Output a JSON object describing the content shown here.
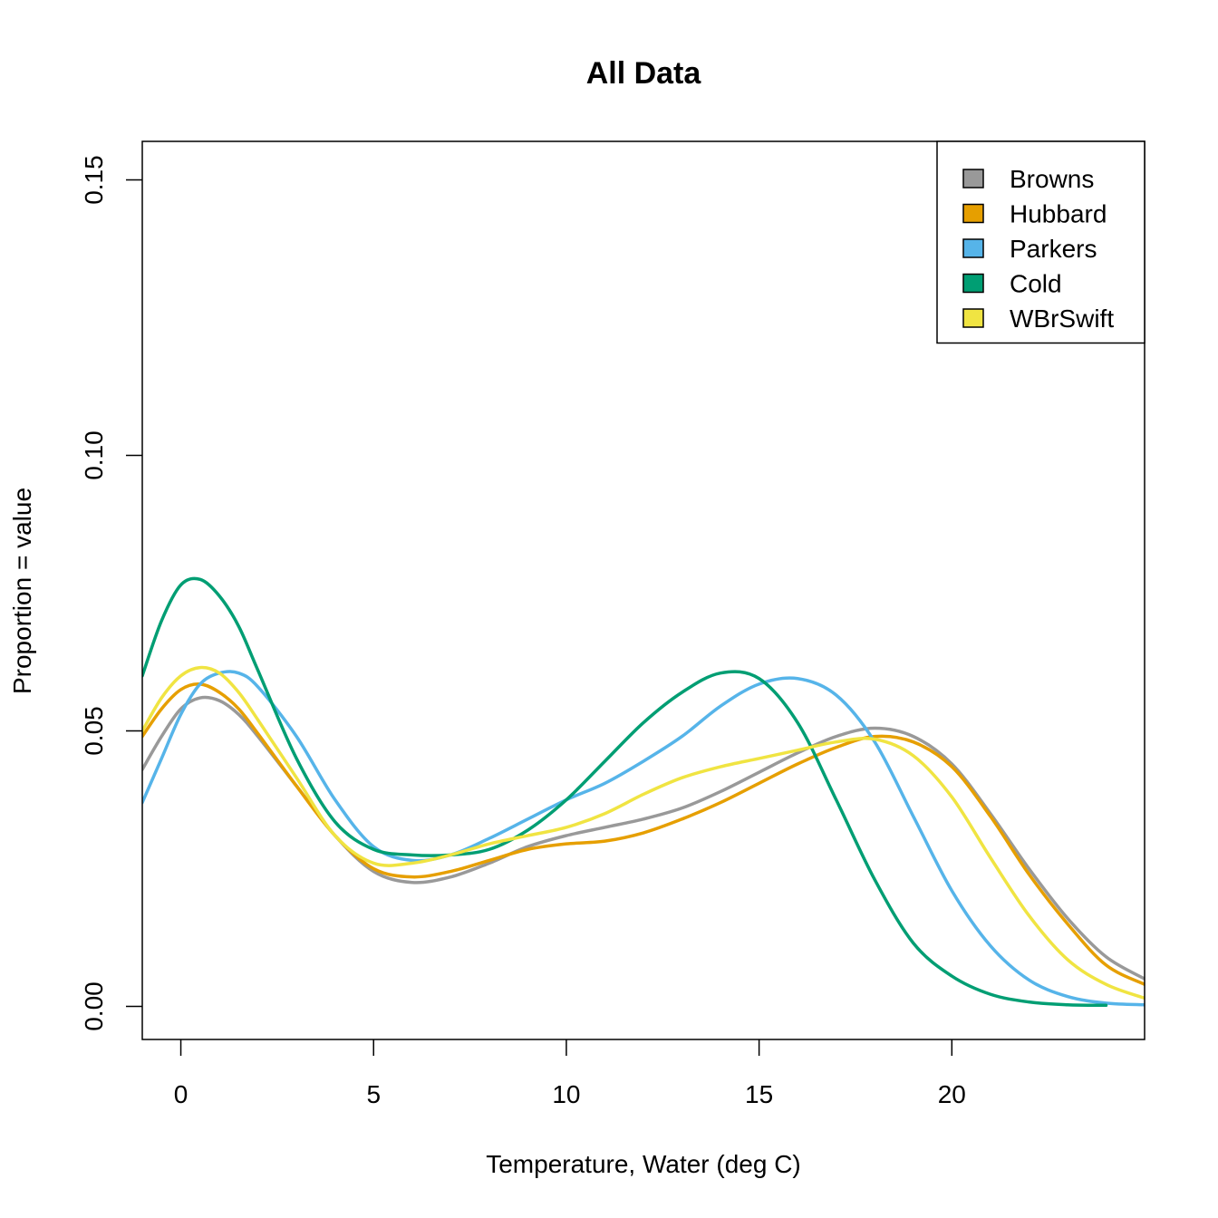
{
  "chart_data": {
    "type": "line",
    "title": "All Data",
    "xlabel": "Temperature, Water (deg C)",
    "ylabel": "Proportion = value",
    "xlim": [
      -1,
      25
    ],
    "ylim": [
      -0.006,
      0.157
    ],
    "x_ticks": [
      0,
      5,
      10,
      15,
      20
    ],
    "x_tick_labels": [
      "0",
      "5",
      "10",
      "15",
      "20"
    ],
    "y_ticks": [
      0,
      0.05,
      0.1,
      0.15
    ],
    "y_tick_labels": [
      "0.00",
      "0.05",
      "0.10",
      "0.15"
    ],
    "grid": false,
    "legend_position": "top-right",
    "series": [
      {
        "name": "Browns",
        "color": "#999999",
        "points": [
          [
            -1,
            0.043
          ],
          [
            -0.5,
            0.049
          ],
          [
            0,
            0.054
          ],
          [
            0.5,
            0.056
          ],
          [
            1,
            0.0555
          ],
          [
            1.5,
            0.053
          ],
          [
            2,
            0.049
          ],
          [
            3,
            0.04
          ],
          [
            4,
            0.031
          ],
          [
            5,
            0.0245
          ],
          [
            6,
            0.0225
          ],
          [
            7,
            0.0235
          ],
          [
            8,
            0.026
          ],
          [
            9,
            0.029
          ],
          [
            10,
            0.031
          ],
          [
            11,
            0.0325
          ],
          [
            12,
            0.034
          ],
          [
            13,
            0.036
          ],
          [
            14,
            0.039
          ],
          [
            15,
            0.0425
          ],
          [
            16,
            0.046
          ],
          [
            17,
            0.049
          ],
          [
            18,
            0.0505
          ],
          [
            19,
            0.049
          ],
          [
            20,
            0.044
          ],
          [
            21,
            0.035
          ],
          [
            22,
            0.025
          ],
          [
            23,
            0.016
          ],
          [
            24,
            0.009
          ],
          [
            25,
            0.005
          ]
        ]
      },
      {
        "name": "Hubbard",
        "color": "#E69F00",
        "points": [
          [
            -1,
            0.049
          ],
          [
            -0.5,
            0.054
          ],
          [
            0,
            0.0575
          ],
          [
            0.5,
            0.0585
          ],
          [
            1,
            0.057
          ],
          [
            1.5,
            0.054
          ],
          [
            2,
            0.0495
          ],
          [
            3,
            0.04
          ],
          [
            4,
            0.031
          ],
          [
            5,
            0.025
          ],
          [
            6,
            0.0235
          ],
          [
            7,
            0.0245
          ],
          [
            8,
            0.0265
          ],
          [
            9,
            0.0285
          ],
          [
            10,
            0.0295
          ],
          [
            11,
            0.03
          ],
          [
            12,
            0.0315
          ],
          [
            13,
            0.034
          ],
          [
            14,
            0.037
          ],
          [
            15,
            0.0405
          ],
          [
            16,
            0.044
          ],
          [
            17,
            0.047
          ],
          [
            18,
            0.049
          ],
          [
            19,
            0.048
          ],
          [
            20,
            0.0435
          ],
          [
            21,
            0.0345
          ],
          [
            22,
            0.024
          ],
          [
            23,
            0.015
          ],
          [
            24,
            0.0075
          ],
          [
            25,
            0.004
          ]
        ]
      },
      {
        "name": "Parkers",
        "color": "#56B4E9",
        "points": [
          [
            -1,
            0.037
          ],
          [
            -0.5,
            0.045
          ],
          [
            0,
            0.053
          ],
          [
            0.5,
            0.0585
          ],
          [
            1,
            0.0605
          ],
          [
            1.5,
            0.0605
          ],
          [
            2,
            0.058
          ],
          [
            3,
            0.049
          ],
          [
            4,
            0.0375
          ],
          [
            5,
            0.029
          ],
          [
            6,
            0.0265
          ],
          [
            7,
            0.0275
          ],
          [
            8,
            0.0305
          ],
          [
            9,
            0.034
          ],
          [
            10,
            0.0375
          ],
          [
            11,
            0.0405
          ],
          [
            12,
            0.0445
          ],
          [
            13,
            0.049
          ],
          [
            14,
            0.0545
          ],
          [
            15,
            0.0585
          ],
          [
            16,
            0.0595
          ],
          [
            17,
            0.0565
          ],
          [
            18,
            0.048
          ],
          [
            19,
            0.0345
          ],
          [
            20,
            0.021
          ],
          [
            21,
            0.011
          ],
          [
            22,
            0.0048
          ],
          [
            23,
            0.0018
          ],
          [
            24,
            0.0006
          ],
          [
            25,
            0.0003
          ]
        ]
      },
      {
        "name": "Cold",
        "color": "#009E73",
        "points": [
          [
            -1,
            0.06
          ],
          [
            -0.5,
            0.07
          ],
          [
            0,
            0.0765
          ],
          [
            0.5,
            0.0775
          ],
          [
            1,
            0.0745
          ],
          [
            1.5,
            0.069
          ],
          [
            2,
            0.061
          ],
          [
            3,
            0.045
          ],
          [
            4,
            0.0335
          ],
          [
            5,
            0.0285
          ],
          [
            6,
            0.0275
          ],
          [
            7,
            0.0275
          ],
          [
            8,
            0.0285
          ],
          [
            9,
            0.032
          ],
          [
            10,
            0.0375
          ],
          [
            11,
            0.0445
          ],
          [
            12,
            0.0515
          ],
          [
            13,
            0.057
          ],
          [
            14,
            0.0605
          ],
          [
            15,
            0.0595
          ],
          [
            16,
            0.0515
          ],
          [
            17,
            0.0375
          ],
          [
            18,
            0.023
          ],
          [
            19,
            0.0115
          ],
          [
            20,
            0.0055
          ],
          [
            21,
            0.0022
          ],
          [
            22,
            0.0008
          ],
          [
            23,
            0.0003
          ],
          [
            24,
            0.0002
          ]
        ]
      },
      {
        "name": "WBrSwift",
        "color": "#F0E442",
        "points": [
          [
            -1,
            0.05
          ],
          [
            -0.5,
            0.056
          ],
          [
            0,
            0.06
          ],
          [
            0.5,
            0.0615
          ],
          [
            1,
            0.0605
          ],
          [
            1.5,
            0.057
          ],
          [
            2,
            0.052
          ],
          [
            3,
            0.0415
          ],
          [
            4,
            0.031
          ],
          [
            5,
            0.026
          ],
          [
            6,
            0.026
          ],
          [
            7,
            0.0275
          ],
          [
            8,
            0.0295
          ],
          [
            9,
            0.031
          ],
          [
            10,
            0.0325
          ],
          [
            11,
            0.035
          ],
          [
            12,
            0.0385
          ],
          [
            13,
            0.0415
          ],
          [
            14,
            0.0435
          ],
          [
            15,
            0.045
          ],
          [
            16,
            0.0465
          ],
          [
            17,
            0.048
          ],
          [
            18,
            0.0485
          ],
          [
            19,
            0.0455
          ],
          [
            20,
            0.038
          ],
          [
            21,
            0.027
          ],
          [
            22,
            0.0165
          ],
          [
            23,
            0.0085
          ],
          [
            24,
            0.004
          ],
          [
            25,
            0.0015
          ]
        ]
      }
    ]
  }
}
